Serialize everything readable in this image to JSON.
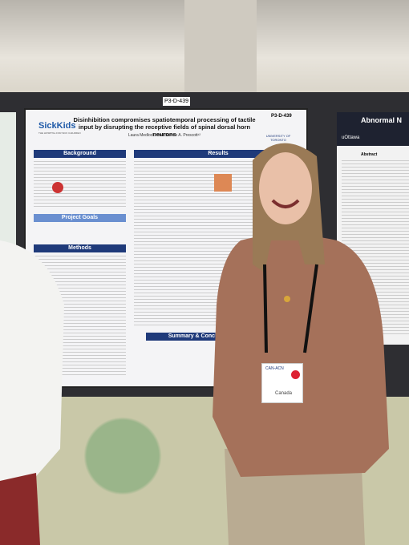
{
  "board_label": "P3-D-439",
  "poster": {
    "code": "P3-D-439",
    "logo": "SickKids",
    "logo_sub": "THE HOSPITAL FOR SICK CHILDREN",
    "title": "Disinhibition compromises spatiotemporal processing of tactile input by disrupting the receptive fields of spinal dorsal horn neurons",
    "authors": "Laura Medlock¹ and Steven A. Prescott¹²",
    "university": "UNIVERSITY OF TORONTO",
    "sections": [
      "Background",
      "Results",
      "Project Goals",
      "Methods",
      "Summary & Conclu"
    ]
  },
  "right_poster": {
    "title": "Abnormal N",
    "logo": "uOttawa",
    "section": "Abstract"
  },
  "badge": {
    "org": "CAN-ACN",
    "country": "Canada"
  }
}
